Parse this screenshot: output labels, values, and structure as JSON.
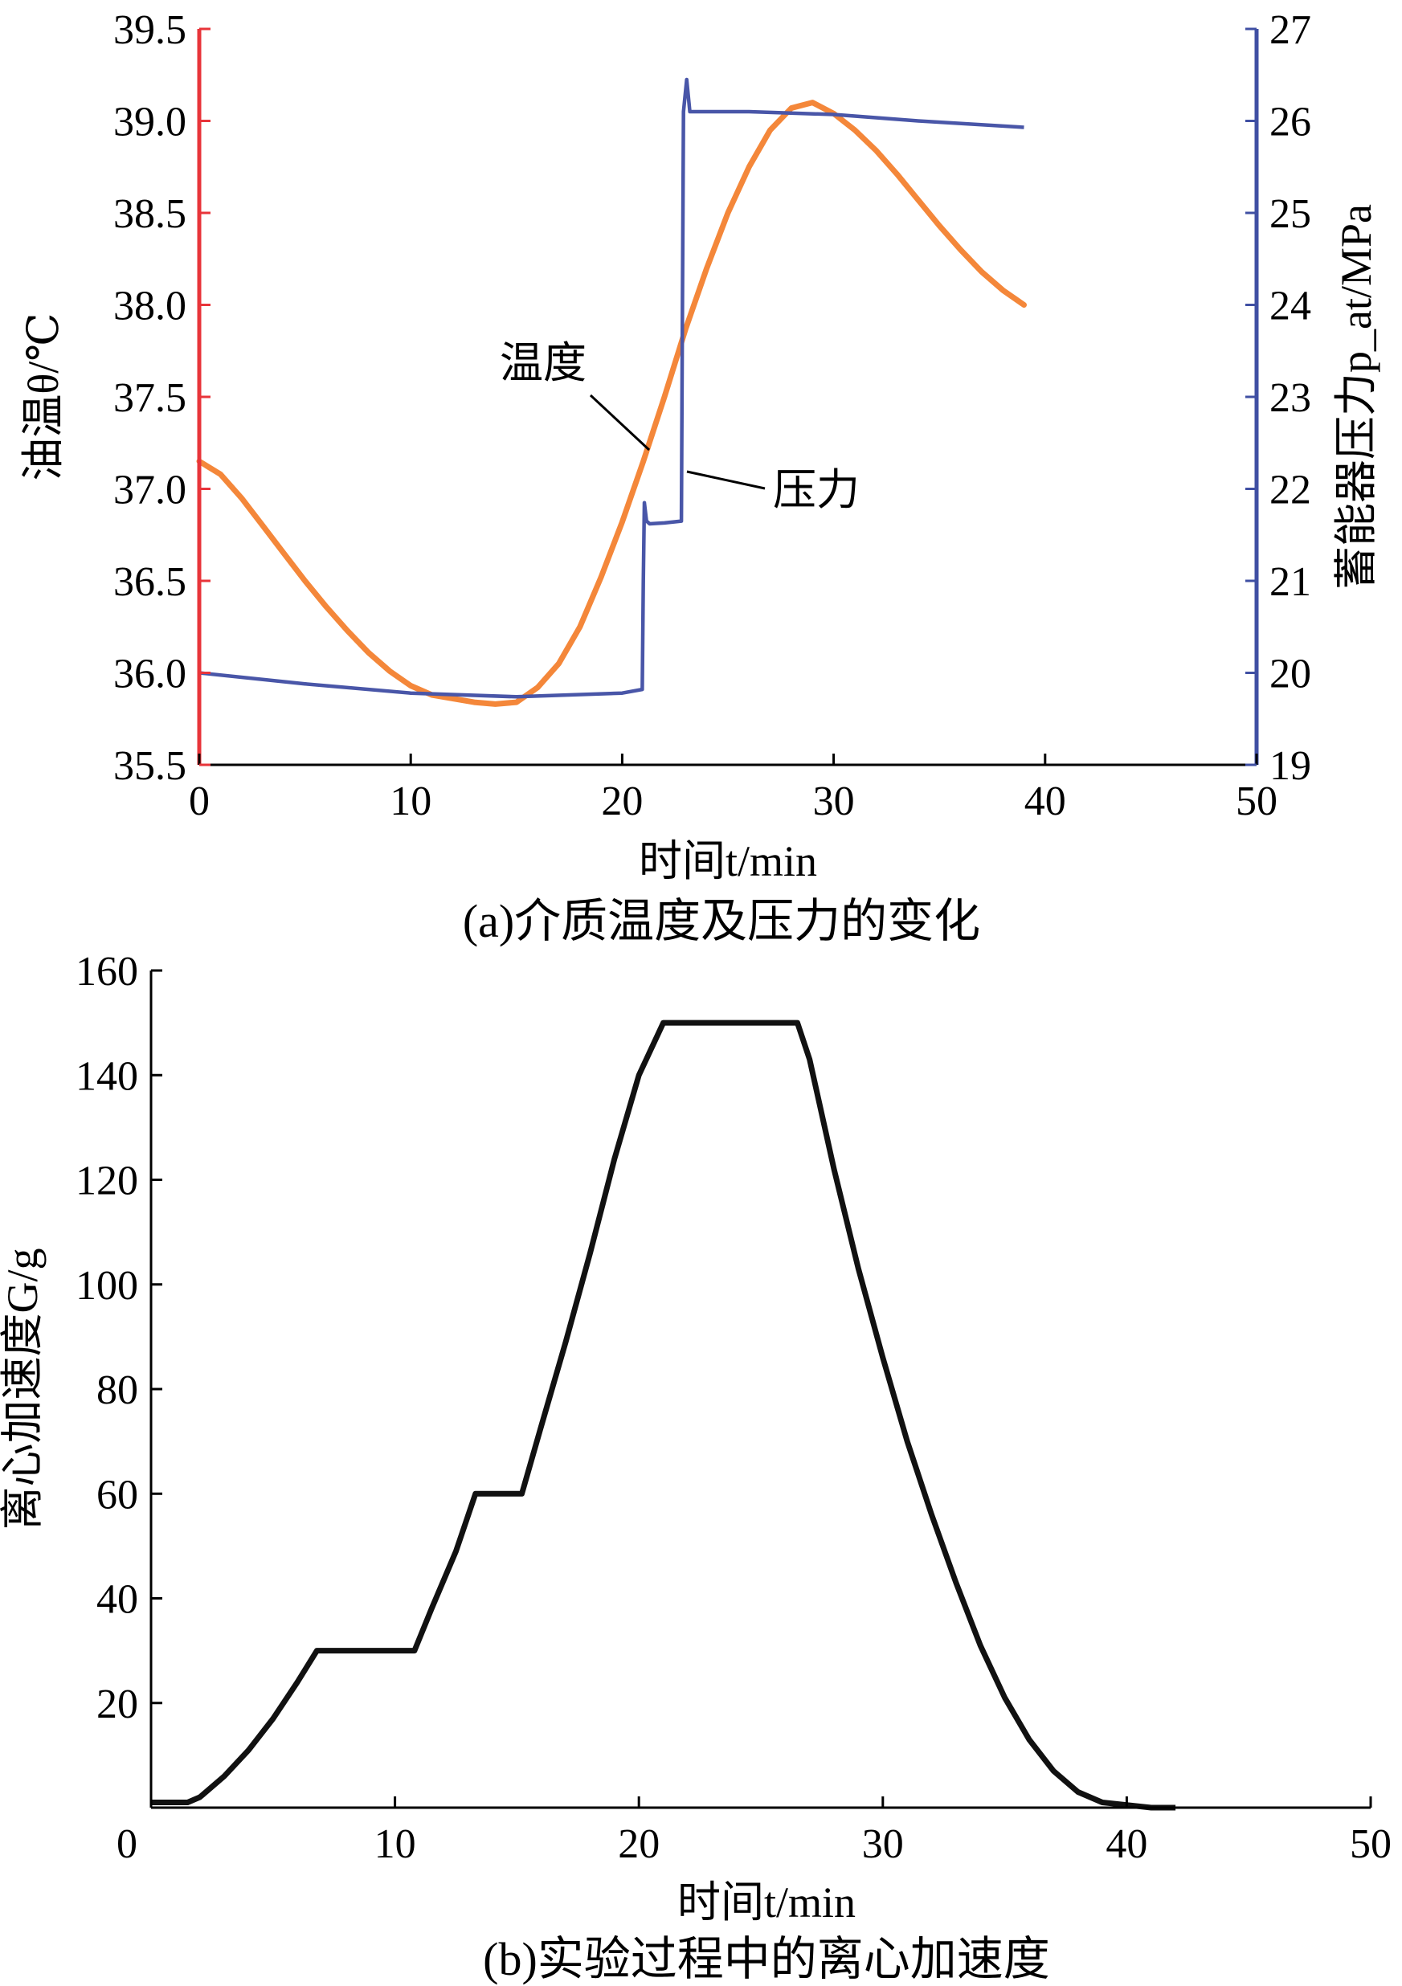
{
  "chart_data": [
    {
      "type": "line",
      "caption": "(a)介质温度及压力的变化",
      "xlabel": "时间t/min",
      "ylabel_left": "油温θ/℃",
      "ylabel_right": "蓄能器压力p_at/MPa",
      "xlim": [
        0,
        50
      ],
      "ylim_left": [
        35.5,
        39.5
      ],
      "ylim_right": [
        19,
        27
      ],
      "x_ticks": [
        "0",
        "10",
        "20",
        "30",
        "40",
        "50"
      ],
      "y_ticks_left": [
        "35.5",
        "36.0",
        "36.5",
        "37.0",
        "37.5",
        "38.0",
        "38.5",
        "39.0",
        "39.5"
      ],
      "y_ticks_right": [
        "19",
        "20",
        "21",
        "22",
        "23",
        "24",
        "25",
        "26",
        "27"
      ],
      "colors": {
        "temperature": "#f4873a",
        "pressure": "#4956a8",
        "left_axis": "#e8343a",
        "right_axis": "#3f4fa3"
      },
      "annotations": {
        "temperature": "温度",
        "pressure": "压力"
      },
      "series": [
        {
          "axis": "left",
          "x": [
            0,
            1,
            2,
            3,
            4,
            5,
            6,
            7,
            8,
            9,
            10,
            11,
            12,
            13,
            14,
            15,
            16,
            17,
            18,
            19,
            20,
            21,
            22,
            23,
            24,
            25,
            26,
            27,
            28,
            29,
            30,
            31,
            32,
            33,
            34,
            35,
            36,
            37,
            38,
            39
          ],
          "y": [
            37.15,
            37.08,
            36.95,
            36.8,
            36.65,
            36.5,
            36.36,
            36.23,
            36.11,
            36.01,
            35.93,
            35.88,
            35.86,
            35.84,
            35.83,
            35.84,
            35.92,
            36.05,
            36.25,
            36.52,
            36.82,
            37.15,
            37.5,
            37.87,
            38.2,
            38.5,
            38.75,
            38.95,
            39.07,
            39.1,
            39.04,
            38.95,
            38.84,
            38.71,
            38.57,
            38.43,
            38.3,
            38.18,
            38.08,
            38.0
          ]
        },
        {
          "axis": "right",
          "x": [
            0,
            5,
            10,
            15,
            20,
            20.95,
            21.0,
            21.05,
            21.15,
            21.3,
            22.0,
            22.8,
            22.85,
            22.9,
            23.05,
            23.2,
            24,
            26,
            30,
            34,
            39
          ],
          "y": [
            20.0,
            19.88,
            19.78,
            19.74,
            19.78,
            19.82,
            21.0,
            21.85,
            21.65,
            21.62,
            21.63,
            21.65,
            24.0,
            26.1,
            26.45,
            26.1,
            26.1,
            26.1,
            26.07,
            26.0,
            25.93
          ]
        }
      ]
    },
    {
      "type": "line",
      "caption": "(b)实验过程中的离心加速度",
      "xlabel": "时间t/min",
      "ylabel": "离心加速度G/g",
      "xlim": [
        0,
        50
      ],
      "ylim": [
        0,
        160
      ],
      "x_ticks": [
        "0",
        "10",
        "20",
        "30",
        "40",
        "50"
      ],
      "y_ticks": [
        "20",
        "40",
        "60",
        "80",
        "100",
        "120",
        "140",
        "160"
      ],
      "colors": {
        "line": "#111111"
      },
      "series": [
        {
          "x": [
            0,
            1.5,
            2,
            3,
            4,
            5,
            6,
            6.8,
            8,
            10,
            10.8,
            11.5,
            12.5,
            13.3,
            14,
            15.2,
            16,
            17,
            18,
            19,
            20,
            21,
            22,
            24,
            26,
            26.5,
            27,
            28,
            29,
            30,
            31,
            32,
            33,
            34,
            35,
            36,
            37,
            38,
            39,
            40,
            41,
            42
          ],
          "y": [
            1,
            1,
            2,
            6,
            11,
            17,
            24,
            30,
            30,
            30,
            30,
            38,
            49,
            60,
            60,
            60,
            73,
            89,
            106,
            124,
            140,
            150,
            150,
            150,
            150,
            150,
            143,
            122,
            103,
            86,
            70,
            56,
            43,
            31,
            21,
            13,
            7,
            3,
            1,
            0.5,
            0,
            0
          ]
        }
      ]
    }
  ]
}
